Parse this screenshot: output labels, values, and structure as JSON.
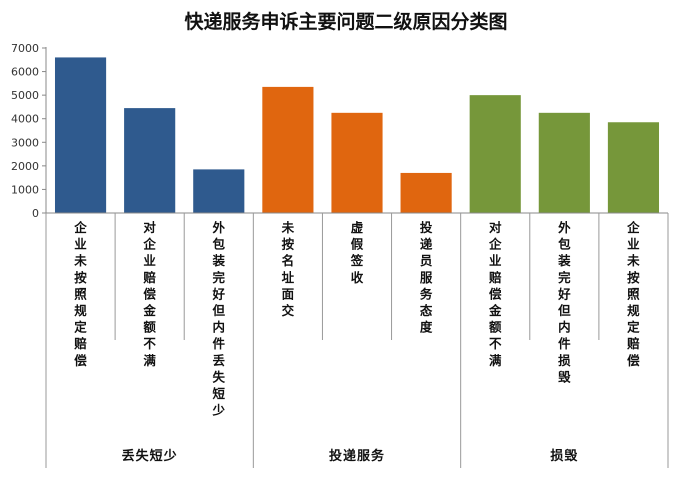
{
  "chart_data": {
    "type": "bar",
    "title": "快递服务申诉主要问题二级原因分类图",
    "ylim": [
      0,
      7000
    ],
    "yticks": [
      0,
      1000,
      2000,
      3000,
      4000,
      5000,
      6000,
      7000
    ],
    "grid": false,
    "groups": [
      {
        "name": "丢失短少",
        "color": "#2f5a8e",
        "categories": [
          "企业未按照规定赔偿",
          "对企业赔偿金额不满",
          "外包装完好但内件丢失短少"
        ],
        "values": [
          6600,
          4450,
          1850
        ]
      },
      {
        "name": "投递服务",
        "color": "#e0660f",
        "categories": [
          "未按名址面交",
          "虚假签收",
          "投递员服务态度"
        ],
        "values": [
          5350,
          4250,
          1700
        ]
      },
      {
        "name": "损毁",
        "color": "#76973a",
        "categories": [
          "对企业赔偿金额不满",
          "外包装完好但内件损毁",
          "企业未按照规定赔偿"
        ],
        "values": [
          5000,
          4250,
          3850
        ]
      }
    ]
  }
}
